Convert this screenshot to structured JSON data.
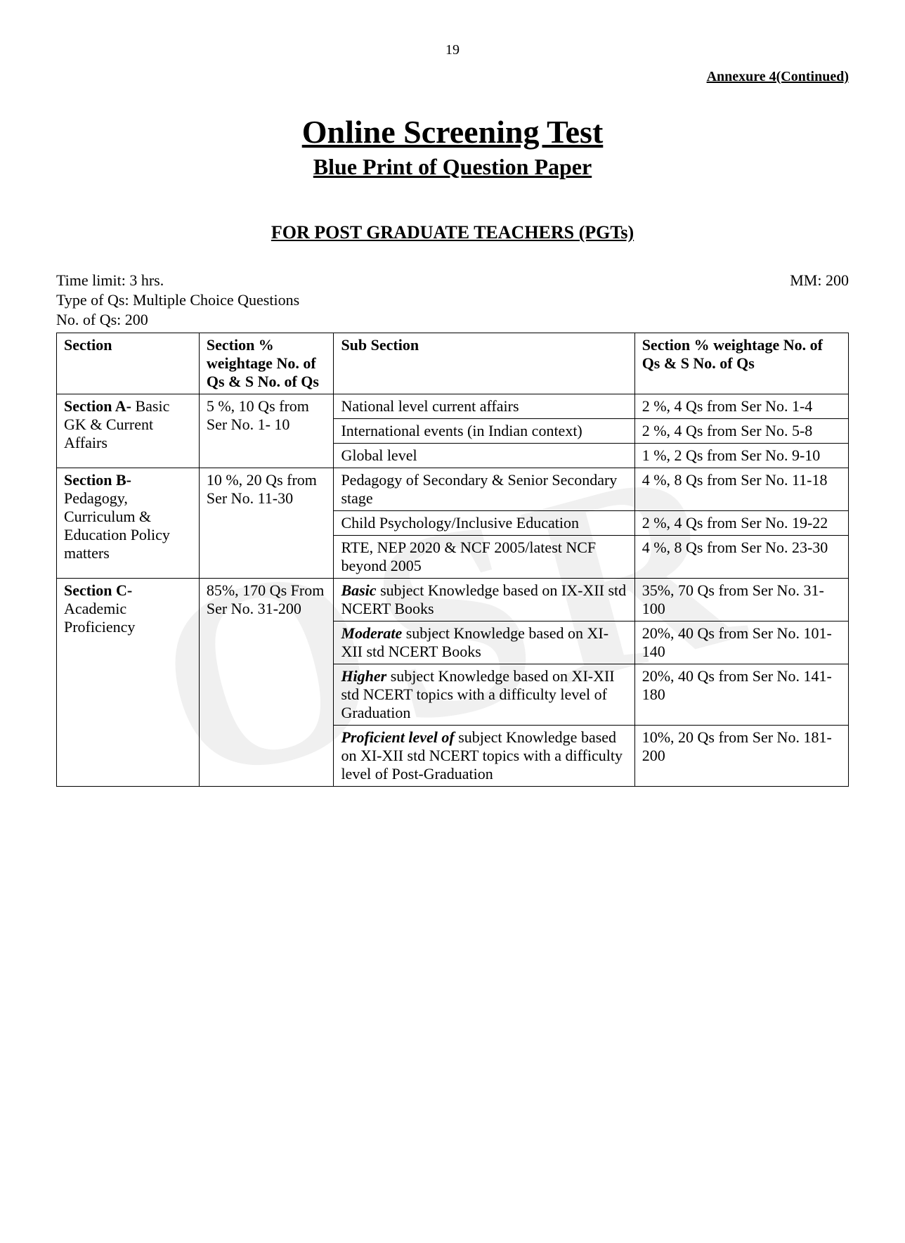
{
  "page_number": "19",
  "annexure": "Annexure 4(Continued)",
  "main_title": "Online Screening Test",
  "subtitle": "Blue Print of Question Paper",
  "for_heading": "FOR POST GRADUATE TEACHERS (PGTs)",
  "time_limit": "Time limit: 3 hrs.",
  "mm": "MM: 200",
  "type_qs": "Type of Qs: Multiple Choice Questions",
  "no_qs": "No. of Qs: 200",
  "watermark_text": "OSR",
  "headers": {
    "col1": "Section",
    "col2": "Section % weightage No. of Qs & S No. of Qs",
    "col3": "Sub Section",
    "col4": "Section % weightage  No. of Qs & S No. of Qs"
  },
  "section_a": {
    "name_bold": "Section A-",
    "name_rest": "Basic GK & Current Affairs",
    "weightage": "5 %, 10 Qs from Ser No. 1- 10",
    "rows": [
      {
        "sub": "National level current affairs",
        "weight": "2 %, 4 Qs from Ser No. 1-4"
      },
      {
        "sub": "International events (in Indian context)",
        "weight": "2 %, 4 Qs from Ser No. 5-8"
      },
      {
        "sub": "Global level",
        "weight": "1 %, 2 Qs from  Ser No. 9-10"
      }
    ]
  },
  "section_b": {
    "name_bold": "Section B-",
    "name_rest": "Pedagogy, Curriculum & Education Policy matters",
    "weightage": "10 %, 20 Qs from Ser No. 11-30",
    "rows": [
      {
        "sub": "Pedagogy of Secondary & Senior Secondary stage",
        "weight": "4 %, 8 Qs from Ser No. 11-18"
      },
      {
        "sub": "Child Psychology/Inclusive Education",
        "weight": "2 %, 4 Qs from Ser No. 19-22"
      },
      {
        "sub": "RTE, NEP 2020 & NCF 2005/latest NCF beyond 2005",
        "weight": "4 %, 8 Qs from   Ser No. 23-30"
      }
    ]
  },
  "section_c": {
    "name_bold": "Section C-",
    "name_rest": "Academic Proficiency",
    "weightage": "85%, 170 Qs From Ser No. 31-200",
    "rows": [
      {
        "sub_bold": "Basic",
        "sub_rest": " subject Knowledge based on IX-XII std NCERT Books",
        "weight": "35%, 70 Qs from Ser No. 31-100"
      },
      {
        "sub_bold": "Moderate",
        "sub_rest": " subject Knowledge based on XI-XII std NCERT Books",
        "weight": "20%, 40 Qs from Ser No. 101-140"
      },
      {
        "sub_bold": "Higher",
        "sub_rest": " subject Knowledge based on XI-XII std NCERT topics with a difficulty level of Graduation",
        "weight": "20%, 40 Qs from Ser No. 141-180"
      },
      {
        "sub_bold": "Proficient level of",
        "sub_rest": " subject Knowledge based on XI-XII std NCERT topics with a difficulty level of Post-Graduation",
        "weight": "10%, 20 Qs from Ser No. 181-200"
      }
    ]
  }
}
